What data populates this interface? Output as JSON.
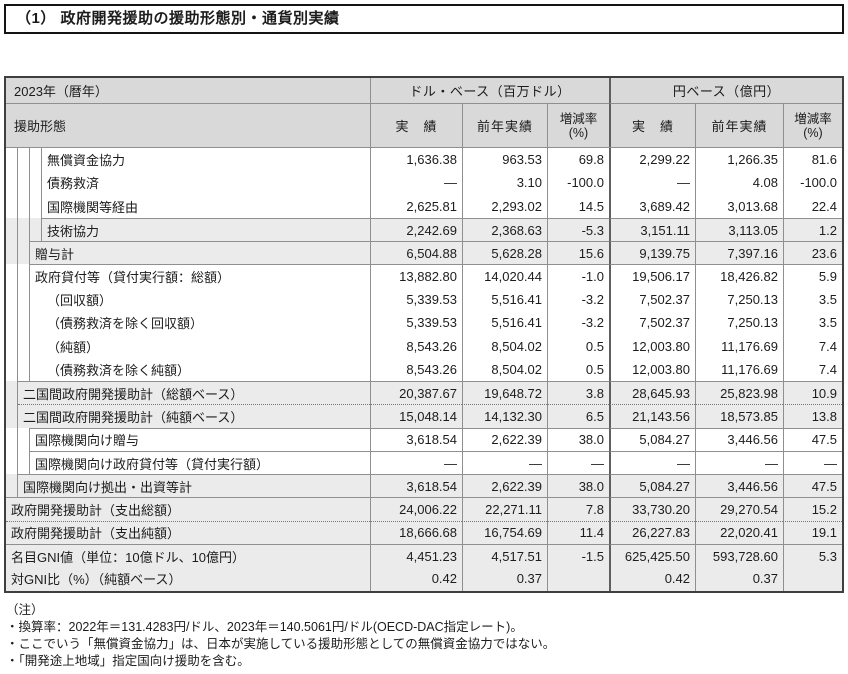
{
  "title": "（1） 政府開発援助の援助形態別・通貨別実績",
  "table": {
    "year_header": "2023年（暦年）",
    "aid_form_header": "援助形態",
    "groups": [
      {
        "label": "ドル・ベース（百万ドル）"
      },
      {
        "label": "円ベース（億円）"
      }
    ],
    "subcolumns": {
      "actual": "実　績",
      "prev": "前年実績",
      "change": "増減率",
      "change_unit": "(%)"
    },
    "rows": [
      {
        "label": "無償資金協力",
        "values": [
          "1,636.38",
          "963.53",
          "69.8",
          "2,299.22",
          "1,266.35",
          "81.6"
        ]
      },
      {
        "label": "債務救済",
        "values": [
          "—",
          "3.10",
          "-100.0",
          "—",
          "4.08",
          "-100.0"
        ]
      },
      {
        "label": "国際機関等経由",
        "values": [
          "2,625.81",
          "2,293.02",
          "14.5",
          "3,689.42",
          "3,013.68",
          "22.4"
        ]
      },
      {
        "label": "技術協力",
        "values": [
          "2,242.69",
          "2,368.63",
          "-5.3",
          "3,151.11",
          "3,113.05",
          "1.2"
        ]
      },
      {
        "label": "贈与計",
        "values": [
          "6,504.88",
          "5,628.28",
          "15.6",
          "9,139.75",
          "7,397.16",
          "23.6"
        ]
      },
      {
        "label": "政府貸付等（貸付実行額：総額）",
        "values": [
          "13,882.80",
          "14,020.44",
          "-1.0",
          "19,506.17",
          "18,426.82",
          "5.9"
        ]
      },
      {
        "label": "（回収額）",
        "values": [
          "5,339.53",
          "5,516.41",
          "-3.2",
          "7,502.37",
          "7,250.13",
          "3.5"
        ]
      },
      {
        "label": "（債務救済を除く回収額）",
        "values": [
          "5,339.53",
          "5,516.41",
          "-3.2",
          "7,502.37",
          "7,250.13",
          "3.5"
        ]
      },
      {
        "label": "（純額）",
        "values": [
          "8,543.26",
          "8,504.02",
          "0.5",
          "12,003.80",
          "11,176.69",
          "7.4"
        ]
      },
      {
        "label": "（債務救済を除く純額）",
        "values": [
          "8,543.26",
          "8,504.02",
          "0.5",
          "12,003.80",
          "11,176.69",
          "7.4"
        ]
      },
      {
        "label": "二国間政府開発援助計（総額ベース）",
        "values": [
          "20,387.67",
          "19,648.72",
          "3.8",
          "28,645.93",
          "25,823.98",
          "10.9"
        ]
      },
      {
        "label": "二国間政府開発援助計（純額ベース）",
        "values": [
          "15,048.14",
          "14,132.30",
          "6.5",
          "21,143.56",
          "18,573.85",
          "13.8"
        ]
      },
      {
        "label": "国際機関向け贈与",
        "values": [
          "3,618.54",
          "2,622.39",
          "38.0",
          "5,084.27",
          "3,446.56",
          "47.5"
        ]
      },
      {
        "label": "国際機関向け政府貸付等（貸付実行額）",
        "values": [
          "—",
          "—",
          "—",
          "—",
          "—",
          "—"
        ]
      },
      {
        "label": "国際機関向け拠出・出資等計",
        "values": [
          "3,618.54",
          "2,622.39",
          "38.0",
          "5,084.27",
          "3,446.56",
          "47.5"
        ]
      },
      {
        "label": "政府開発援助計（支出総額）",
        "values": [
          "24,006.22",
          "22,271.11",
          "7.8",
          "33,730.20",
          "29,270.54",
          "15.2"
        ]
      },
      {
        "label": "政府開発援助計（支出純額）",
        "values": [
          "18,666.68",
          "16,754.69",
          "11.4",
          "26,227.83",
          "22,020.41",
          "19.1"
        ]
      },
      {
        "label": "名目GNI値（単位：10億ドル、10億円）",
        "values": [
          "4,451.23",
          "4,517.51",
          "-1.5",
          "625,425.50",
          "593,728.60",
          "5.3"
        ]
      },
      {
        "label": "対GNI比（%）（純額ベース）",
        "values": [
          "0.42",
          "0.37",
          "",
          "0.42",
          "0.37",
          ""
        ]
      }
    ]
  },
  "notes": {
    "heading": "（注）",
    "items": [
      "・換算率：2022年＝131.4283円/ドル、2023年＝140.5061円/ドル(OECD-DAC指定レート)。",
      "・ここでいう「無償資金協力」は、日本が実施している援助形態としての無償資金協力ではない。",
      "・「開発途上地域」指定国向け援助を含む。"
    ]
  },
  "colors": {
    "header_bg": "#d9d9d9",
    "shaded_row_bg": "#ebebeb",
    "outer_border": "#3f3f3f",
    "inner_border": "#8f8f8f"
  }
}
